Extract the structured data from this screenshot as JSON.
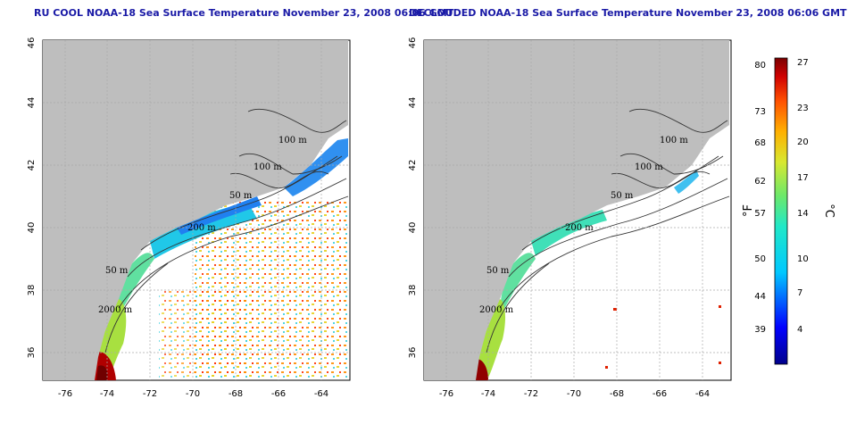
{
  "titles": {
    "left": "RU COOL NOAA-18 Sea Surface Temperature November 23, 2008 06:06 GMT",
    "right": "DECLOUDED NOAA-18 Sea Surface Temperature November 23, 2008 06:06 GMT"
  },
  "axes": {
    "lon_ticks": [
      "-76",
      "-74",
      "-72",
      "-70",
      "-68",
      "-66",
      "-64"
    ],
    "lat_ticks": [
      "36",
      "38",
      "40",
      "42",
      "44",
      "46"
    ]
  },
  "contour_labels": [
    "100 m",
    "100 m",
    "50 m",
    "200 m",
    "50 m",
    "2000 m"
  ],
  "colorbar": {
    "fahrenheit_label": "°F",
    "celsius_label": "°C",
    "fahrenheit_ticks": [
      "80",
      "73",
      "68",
      "62",
      "57",
      "50",
      "44",
      "39"
    ],
    "celsius_ticks": [
      "27",
      "23",
      "20",
      "17",
      "14",
      "10",
      "7",
      "4"
    ]
  },
  "colors": {
    "land": "#bebebe",
    "title": "#1a1aa6",
    "grid": "#aaaaaa"
  }
}
